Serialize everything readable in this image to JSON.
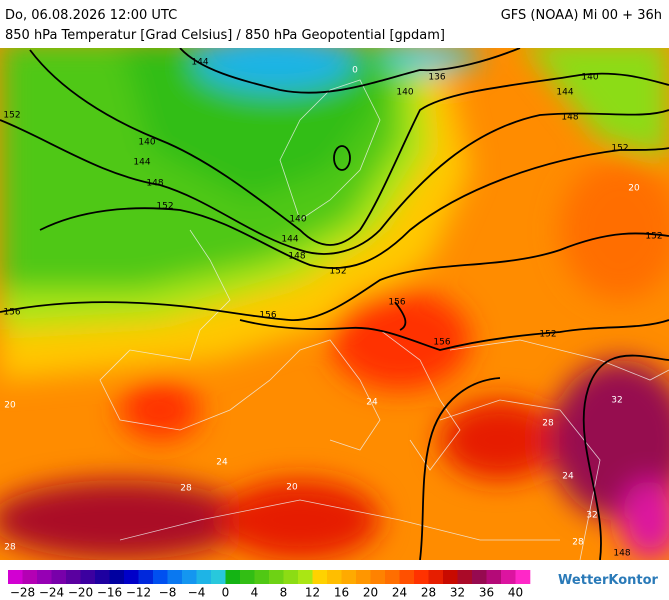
{
  "header": {
    "date": "Do, 06.08.2026 12:00 UTC",
    "model": "GFS (NOAA) Mi 00 + 36h",
    "subtitle": "850 hPa Temperatur [Grad Celsius] / 850 hPa Geopotential [gpdam]"
  },
  "map": {
    "geopotential_labels": [
      "144",
      "136",
      "140",
      "140",
      "144",
      "152",
      "148",
      "140",
      "144",
      "148",
      "152",
      "152",
      "140",
      "144",
      "148",
      "152",
      "152",
      "156",
      "156",
      "156",
      "156",
      "152",
      "148"
    ],
    "temperature_labels": [
      "0",
      "20",
      "20",
      "24",
      "28",
      "32",
      "24",
      "28",
      "24",
      "32",
      "28",
      "20",
      "28"
    ]
  },
  "colorbar": {
    "lim": [
      -30,
      42
    ],
    "colors": [
      "#d200d2",
      "#b400b4",
      "#9600b4",
      "#7800aa",
      "#5a00a0",
      "#3c00a0",
      "#1e00a0",
      "#0000a0",
      "#0000c8",
      "#0028dc",
      "#0050f0",
      "#0a78f0",
      "#1496f0",
      "#1eb4e6",
      "#28c8dc",
      "#14b414",
      "#32be14",
      "#50c814",
      "#6ed214",
      "#8cdc14",
      "#aae614",
      "#ffd200",
      "#ffbe00",
      "#ffaa00",
      "#ff9600",
      "#ff8200",
      "#ff6e00",
      "#ff5000",
      "#ff3200",
      "#e61e00",
      "#c80a00",
      "#aa0a28",
      "#960a50",
      "#b40a78",
      "#dc14a0",
      "#ff28c8"
    ],
    "ticks": [
      {
        "value": -28,
        "label": "−28"
      },
      {
        "value": -24,
        "label": "−24"
      },
      {
        "value": -20,
        "label": "−20"
      },
      {
        "value": -16,
        "label": "−16"
      },
      {
        "value": -12,
        "label": "−12"
      },
      {
        "value": -8,
        "label": "−8"
      },
      {
        "value": -4,
        "label": "−4"
      },
      0,
      4,
      8,
      12,
      16,
      20,
      24,
      28,
      32,
      36,
      40
    ]
  },
  "logo": "WetterKontor"
}
